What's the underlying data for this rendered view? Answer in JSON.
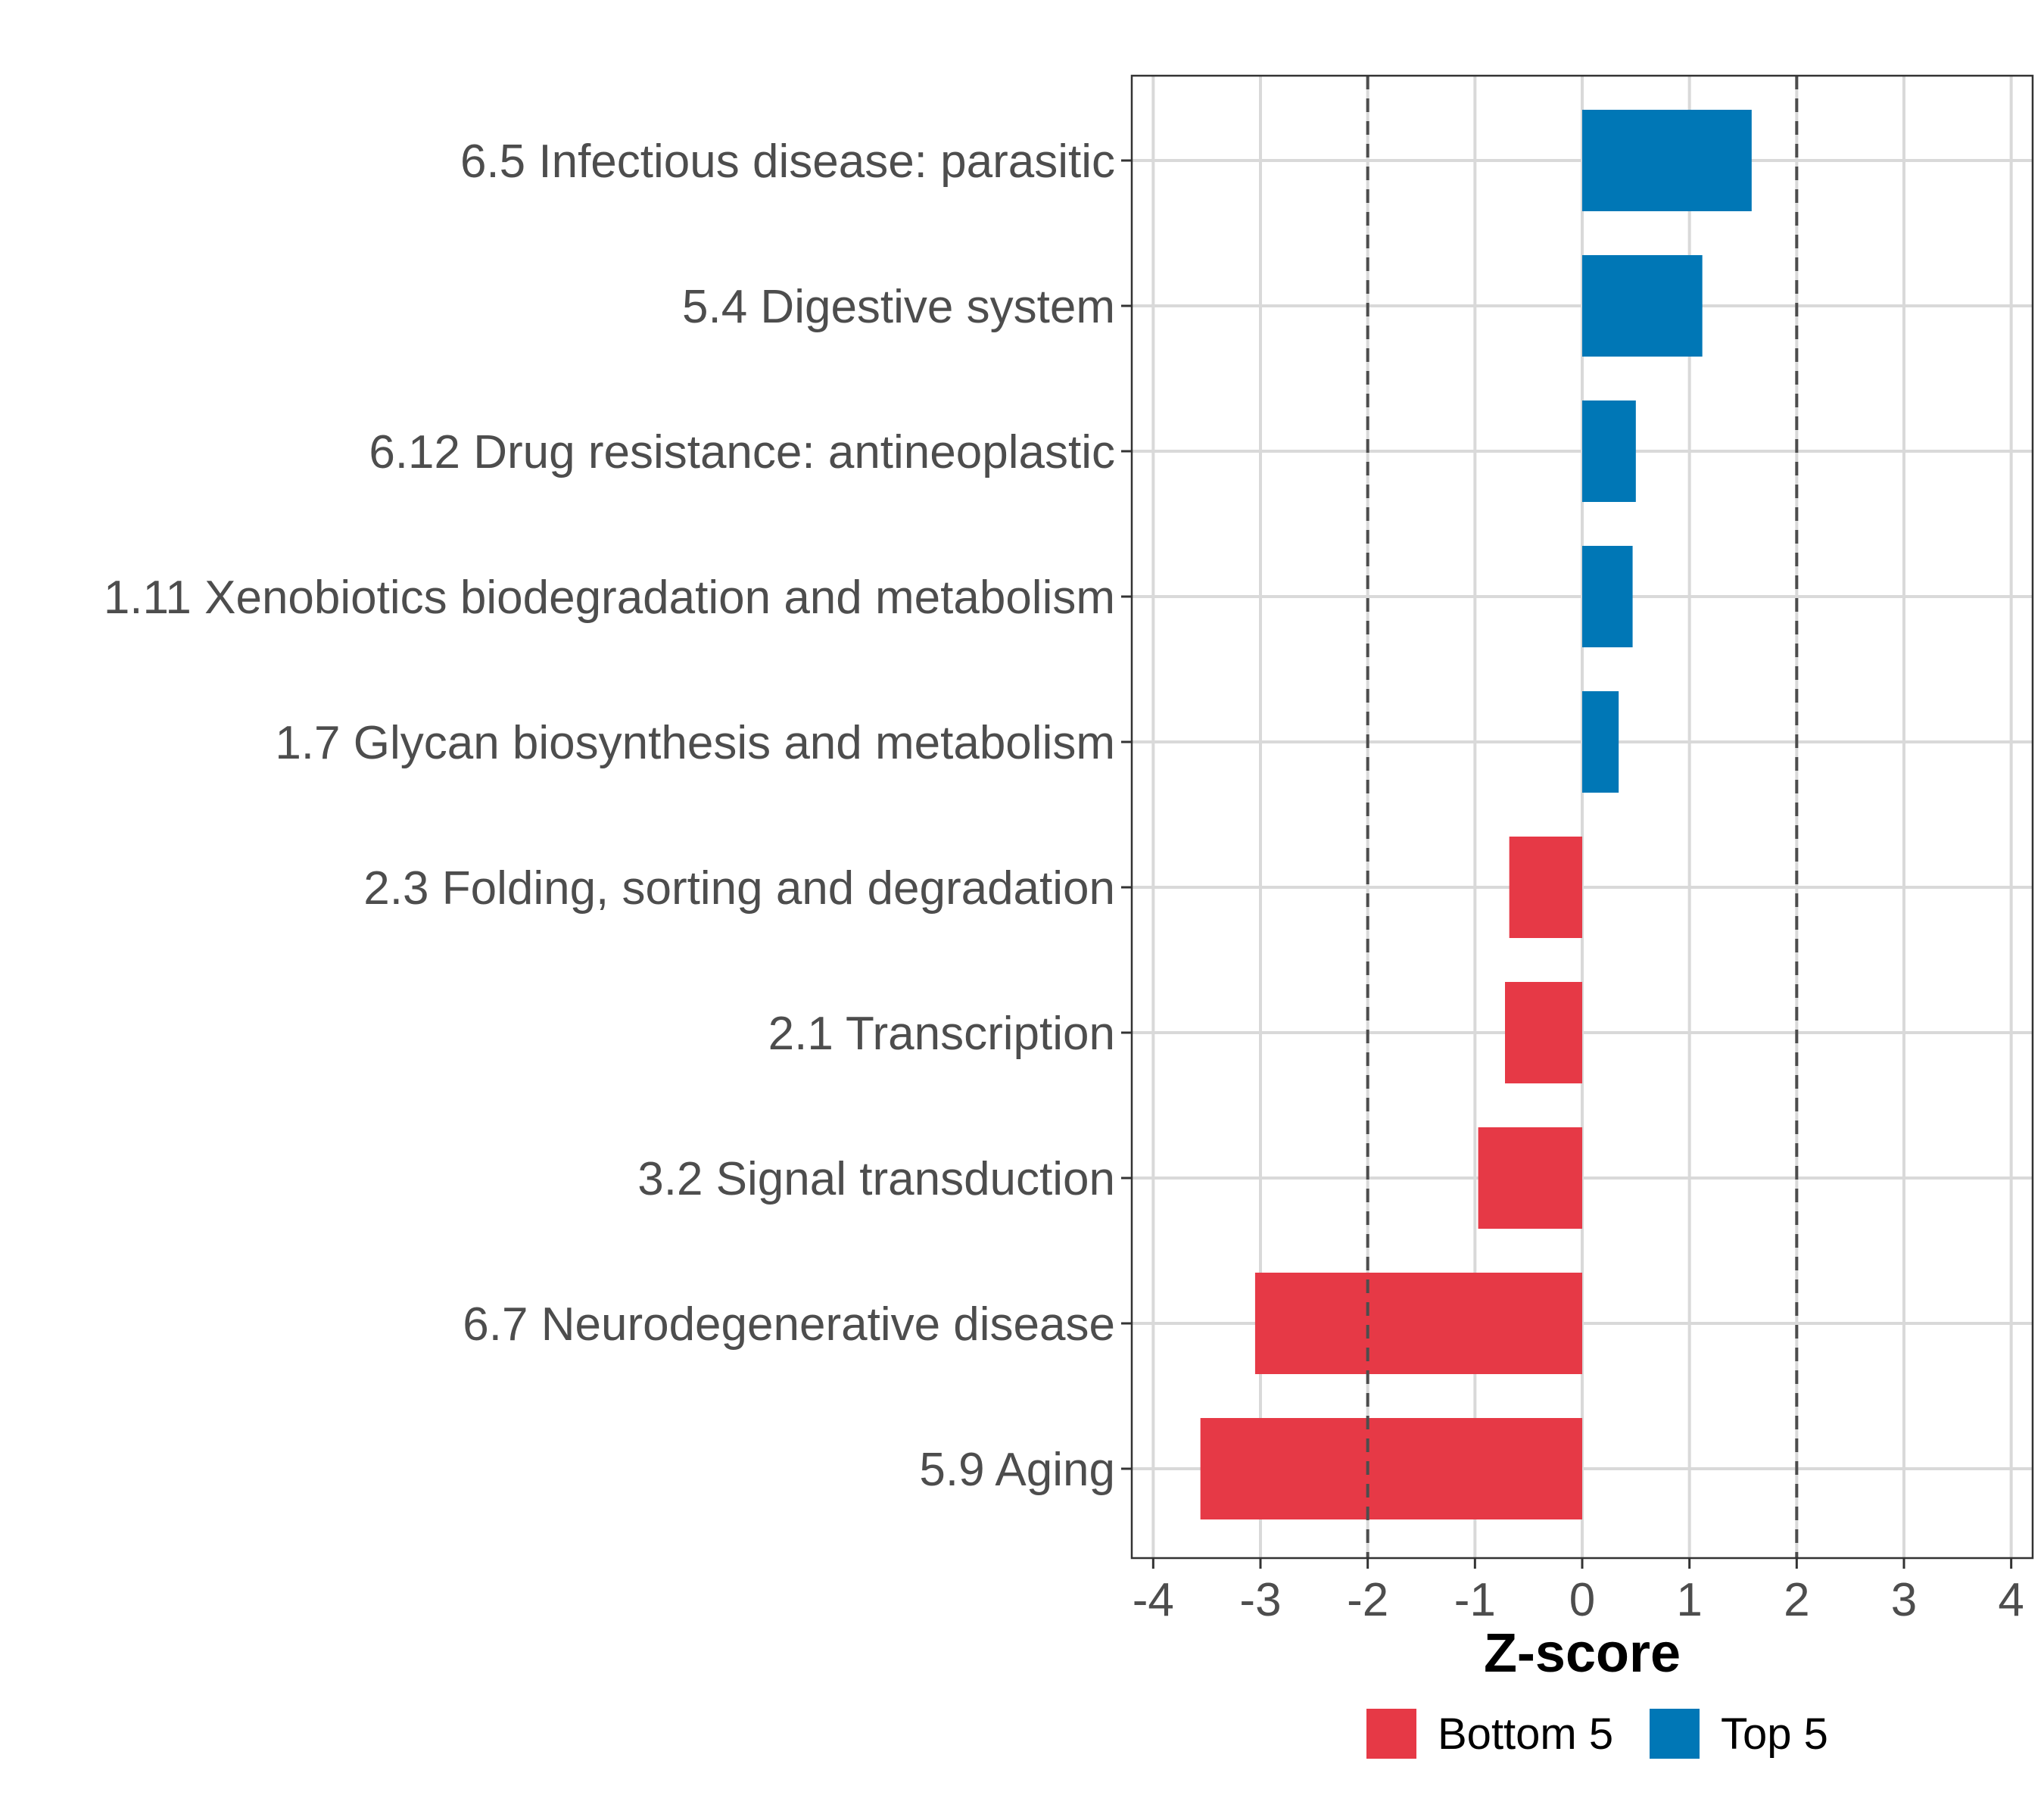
{
  "chart_data": {
    "type": "bar",
    "orientation": "horizontal",
    "title": "",
    "xlabel": "Z-score",
    "ylabel": "",
    "xlim": [
      -4.2,
      4.2
    ],
    "xticks": [
      -4,
      -3,
      -2,
      -1,
      0,
      1,
      2,
      3,
      4
    ],
    "grid": true,
    "threshold_lines": [
      -2,
      2
    ],
    "categories": [
      "6.5 Infectious disease: parasitic",
      "5.4 Digestive system",
      "6.12 Drug resistance: antineoplastic",
      "1.11 Xenobiotics biodegradation and metabolism",
      "1.7 Glycan biosynthesis and metabolism",
      "2.3 Folding, sorting and degradation",
      "2.1 Transcription",
      "3.2 Signal transduction",
      "6.7 Neurodegenerative disease",
      "5.9 Aging"
    ],
    "values": [
      1.58,
      1.12,
      0.5,
      0.47,
      0.34,
      -0.68,
      -0.72,
      -0.97,
      -3.05,
      -3.56
    ],
    "groups": [
      "Top 5",
      "Top 5",
      "Top 5",
      "Top 5",
      "Top 5",
      "Bottom 5",
      "Bottom 5",
      "Bottom 5",
      "Bottom 5",
      "Bottom 5"
    ],
    "legend": [
      {
        "name": "Bottom 5",
        "color": "#E63946"
      },
      {
        "name": "Top 5",
        "color": "#0077B6"
      }
    ],
    "legend_position": "bottom"
  }
}
